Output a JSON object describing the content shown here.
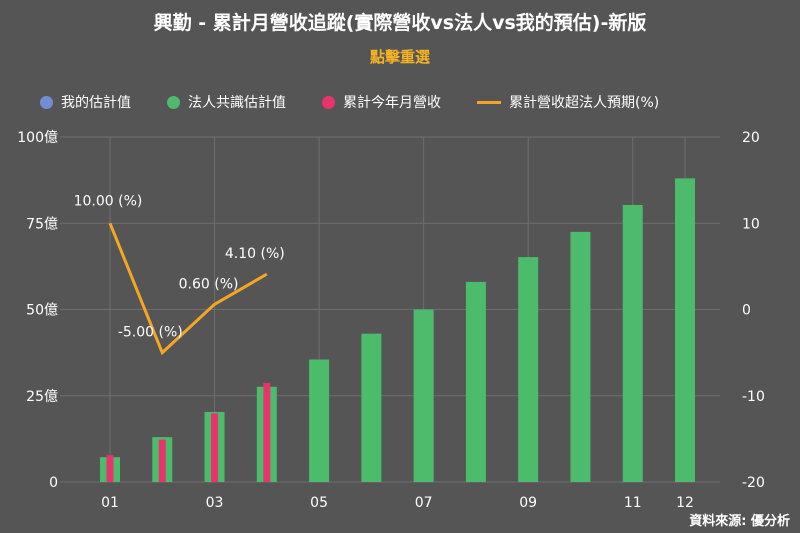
{
  "title": "興勤 - 累計月營收追蹤(實際營收vs法人vs我的預估)-新版",
  "subtitle": "點擊重選",
  "source": "資料來源: 優分析",
  "colors": {
    "background": "#555555",
    "my_estimate": "#6f8fd0",
    "consensus": "#4cbb6c",
    "actual": "#e8336d",
    "excess": "#f5a623",
    "grid": "#6e6e6e"
  },
  "chart_data": {
    "type": "bar",
    "categories": [
      "01",
      "02",
      "03",
      "04",
      "05",
      "06",
      "07",
      "08",
      "09",
      "10",
      "11",
      "12"
    ],
    "x_tick_labels": [
      "01",
      "",
      "03",
      "",
      "05",
      "",
      "07",
      "",
      "09",
      "",
      "11",
      "12"
    ],
    "y_left": {
      "ticks": [
        0,
        25,
        50,
        75,
        100
      ],
      "labels": [
        "0",
        "25億",
        "50億",
        "75億",
        "100億"
      ],
      "range": [
        0,
        100
      ]
    },
    "y_right": {
      "ticks": [
        -20,
        -10,
        0,
        10,
        20
      ],
      "labels": [
        "-20",
        "-10",
        "0",
        "10",
        "20"
      ],
      "range": [
        -20,
        20
      ]
    },
    "grid": true,
    "legend_position": "top",
    "series": [
      {
        "name": "我的估計值",
        "type": "bar",
        "color_key": "my_estimate",
        "values": [
          null,
          null,
          null,
          null,
          null,
          null,
          null,
          null,
          null,
          null,
          null,
          null
        ]
      },
      {
        "name": "法人共識估計值",
        "type": "bar",
        "color_key": "consensus",
        "values": [
          7.2,
          13,
          20.3,
          27.6,
          35.5,
          43,
          50,
          58,
          65.2,
          72.5,
          80.3,
          88
        ]
      },
      {
        "name": "累計今年月營收",
        "type": "bar",
        "color_key": "actual",
        "values": [
          7.8,
          12.3,
          19.9,
          28.7,
          null,
          null,
          null,
          null,
          null,
          null,
          null,
          null
        ]
      },
      {
        "name": "累計營收超法人預期(%)",
        "type": "line",
        "color_key": "excess",
        "axis": "right",
        "values": [
          10,
          -5,
          0.6,
          4.1,
          null,
          null,
          null,
          null,
          null,
          null,
          null,
          null
        ]
      }
    ],
    "data_labels": [
      "10.00 (%)",
      "-5.00 (%)",
      "0.60 (%)",
      "4.10 (%)"
    ]
  }
}
